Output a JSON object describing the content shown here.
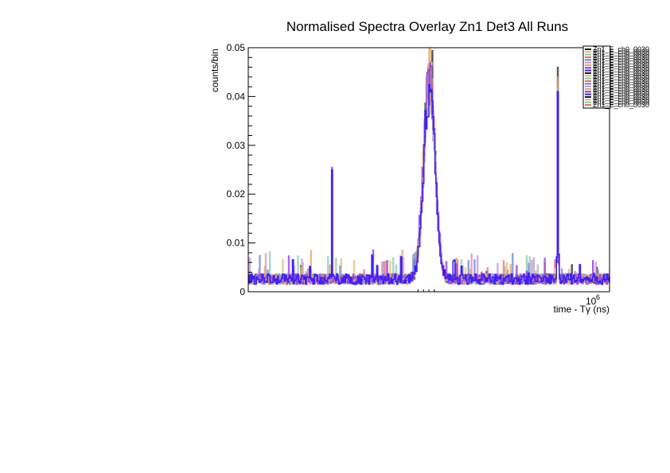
{
  "chart_data": {
    "type": "line",
    "title": "Normalised Spectra Overlay Zn1 Det3 All Runs",
    "xlabel": "time - Tγ (ns)",
    "ylabel": "counts/bin",
    "x_multiplier_label": "10",
    "x_multiplier_exponent": "6",
    "ylim": [
      0,
      0.05
    ],
    "y_ticks": [
      0,
      0.01,
      0.02,
      0.03,
      0.04,
      0.05
    ],
    "y_tick_labels": [
      "0",
      "0.01",
      "0.02",
      "0.03",
      "0.04",
      "0.05"
    ],
    "grid": false,
    "legend_placement": "top-right",
    "series_colors": [
      "#1a1a1a",
      "#d9c060",
      "#88c8b0",
      "#e07070",
      "#7080d0",
      "#c090d0",
      "#e8a060",
      "#8a2be2",
      "#3a20ff"
    ],
    "series": [
      {
        "peaks": [
          {
            "x": 0.23,
            "y": 0.02
          },
          {
            "x": 0.5,
            "y": 0.049
          },
          {
            "x": 0.855,
            "y": 0.046
          }
        ]
      },
      {
        "peaks": [
          {
            "x": 0.23,
            "y": 0.02
          },
          {
            "x": 0.5,
            "y": 0.05
          },
          {
            "x": 0.855,
            "y": 0.04
          }
        ]
      },
      {
        "peaks": [
          {
            "x": 0.23,
            "y": 0.021
          },
          {
            "x": 0.5,
            "y": 0.048
          },
          {
            "x": 0.855,
            "y": 0.042
          }
        ]
      },
      {
        "peaks": [
          {
            "x": 0.23,
            "y": 0.022
          },
          {
            "x": 0.5,
            "y": 0.047
          },
          {
            "x": 0.855,
            "y": 0.041
          }
        ]
      },
      {
        "peaks": [
          {
            "x": 0.23,
            "y": 0.02
          },
          {
            "x": 0.5,
            "y": 0.046
          },
          {
            "x": 0.855,
            "y": 0.043
          }
        ]
      },
      {
        "peaks": [
          {
            "x": 0.23,
            "y": 0.023
          },
          {
            "x": 0.5,
            "y": 0.048
          },
          {
            "x": 0.855,
            "y": 0.04
          }
        ]
      },
      {
        "peaks": [
          {
            "x": 0.23,
            "y": 0.021
          },
          {
            "x": 0.5,
            "y": 0.049
          },
          {
            "x": 0.855,
            "y": 0.044
          }
        ]
      },
      {
        "peaks": [
          {
            "x": 0.23,
            "y": 0.0255
          },
          {
            "x": 0.5,
            "y": 0.047
          },
          {
            "x": 0.855,
            "y": 0.04
          }
        ]
      },
      {
        "peaks": [
          {
            "x": 0.23,
            "y": 0.025
          },
          {
            "x": 0.5,
            "y": 0.045
          },
          {
            "x": 0.855,
            "y": 0.041
          }
        ]
      }
    ],
    "legend": {
      "entries": [
        "Zn1_E_ch0_0030"
      ]
    }
  }
}
